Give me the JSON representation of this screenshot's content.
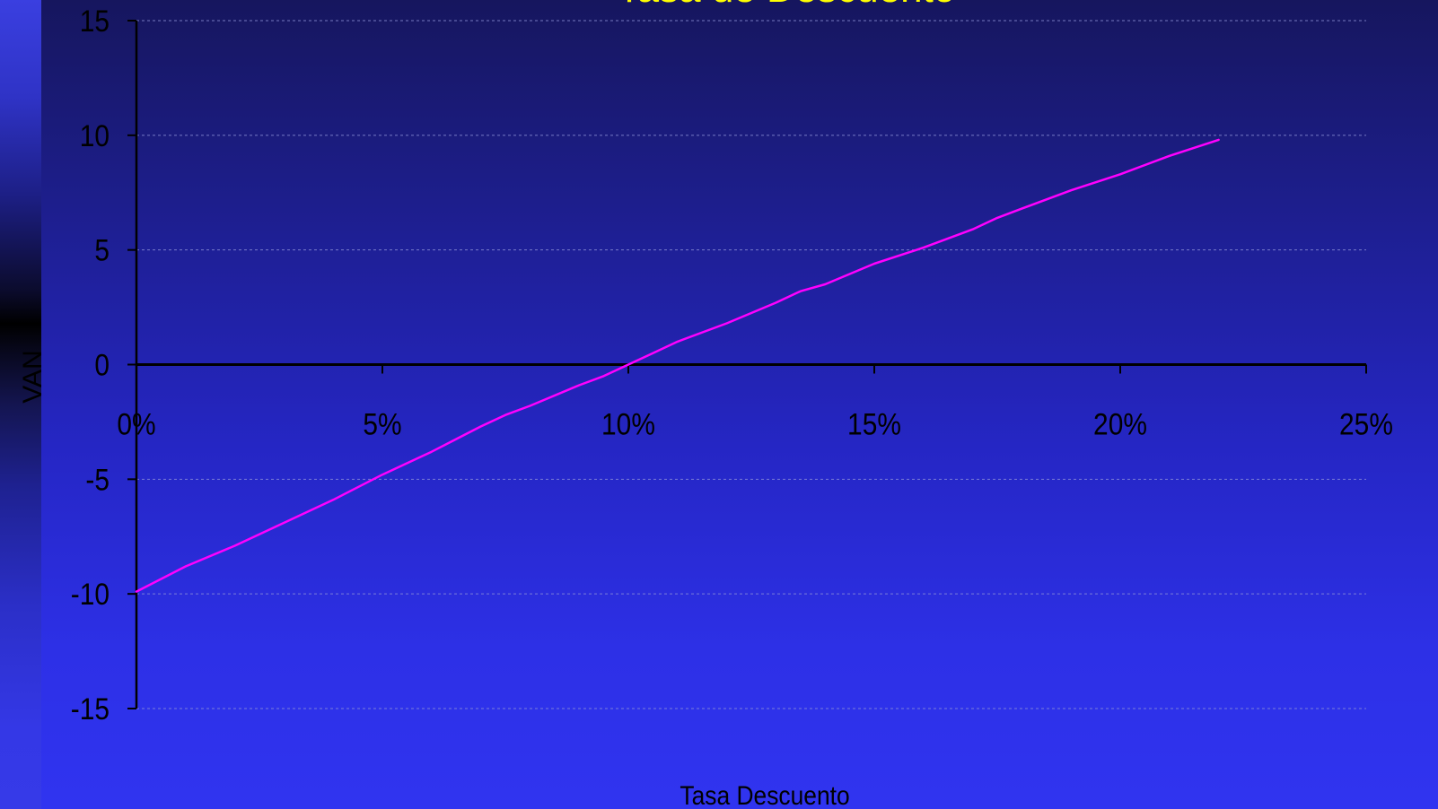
{
  "chart_data": {
    "type": "line",
    "title": "Tasa de Descuento",
    "xlabel": "Tasa Descuento",
    "ylabel": "VAN",
    "xlim": [
      0,
      0.25
    ],
    "ylim": [
      -15,
      15
    ],
    "grid": true,
    "x_ticks": [
      0,
      0.05,
      0.1,
      0.15,
      0.2,
      0.25
    ],
    "x_tick_labels": [
      "0%",
      "5%",
      "10%",
      "15%",
      "20%",
      "25%"
    ],
    "y_ticks": [
      15,
      10,
      5,
      0,
      -5,
      -10,
      -15
    ],
    "y_tick_labels": [
      "15",
      "10",
      "5",
      "0",
      "-5",
      "-10",
      "-15"
    ],
    "series": [
      {
        "color": "#ff00ff",
        "x": [
          0.0,
          0.01,
          0.02,
          0.03,
          0.04,
          0.05,
          0.06,
          0.07,
          0.075,
          0.08,
          0.09,
          0.095,
          0.1,
          0.105,
          0.11,
          0.12,
          0.13,
          0.135,
          0.14,
          0.15,
          0.16,
          0.17,
          0.175,
          0.18,
          0.19,
          0.2,
          0.21,
          0.22
        ],
        "y": [
          -9.9,
          -8.8,
          -7.9,
          -6.9,
          -5.9,
          -4.8,
          -3.8,
          -2.7,
          -2.2,
          -1.8,
          -0.9,
          -0.5,
          0.0,
          0.5,
          1.0,
          1.8,
          2.7,
          3.2,
          3.5,
          4.4,
          5.1,
          5.9,
          6.4,
          6.8,
          7.6,
          8.3,
          9.1,
          9.8
        ]
      }
    ]
  },
  "colors": {
    "title_color": "#ffff00",
    "axis_color": "#000000",
    "grid_color": "#8f92d8",
    "label_color": "#000000"
  }
}
